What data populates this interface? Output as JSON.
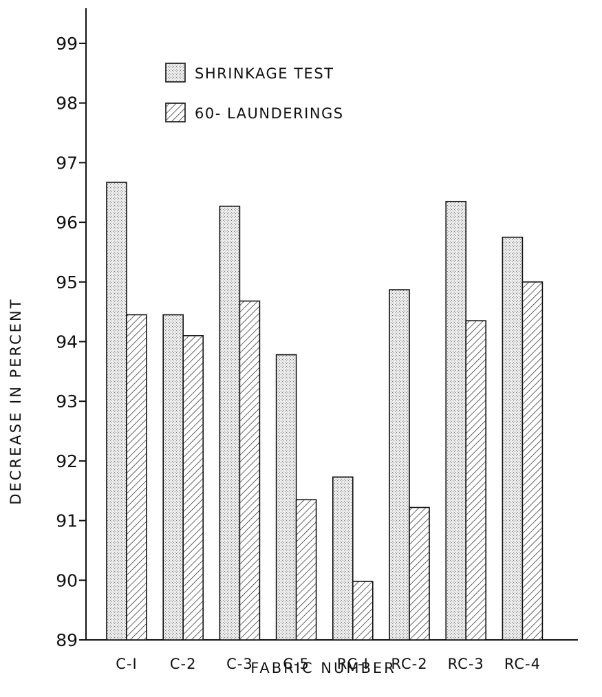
{
  "chart_data": {
    "type": "bar",
    "title": "",
    "xlabel": "FABRIC NUMBER",
    "ylabel": "DECREASE IN PERCENT",
    "ylim": [
      89,
      99
    ],
    "yticks": [
      "89",
      "90",
      "91",
      "92",
      "93",
      "94",
      "95",
      "96",
      "97",
      "98",
      "99"
    ],
    "grid": false,
    "legend_position": "top-left",
    "categories": [
      "C-I",
      "C-2",
      "C-3",
      "C-5",
      "RC-I",
      "RC-2",
      "RC-3",
      "RC-4"
    ],
    "series": [
      {
        "name": "SHRINKAGE TEST",
        "pattern": "stippled",
        "values": [
          96.67,
          94.45,
          96.27,
          93.78,
          91.73,
          94.87,
          96.35,
          95.75
        ]
      },
      {
        "name": "60- LAUNDERINGS",
        "pattern": "hatched",
        "values": [
          94.45,
          94.1,
          94.68,
          91.35,
          89.98,
          91.22,
          94.35,
          95.0
        ]
      }
    ]
  }
}
